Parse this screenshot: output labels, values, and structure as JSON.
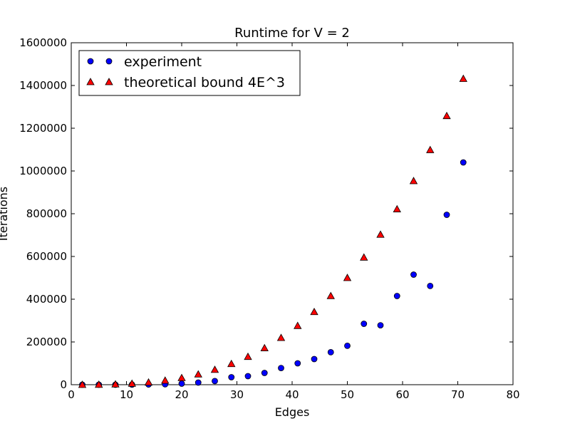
{
  "chart_data": {
    "type": "scatter",
    "title": "Runtime for V = 2",
    "xlabel": "Edges",
    "ylabel": "Iterations",
    "xlim": [
      0,
      80
    ],
    "ylim": [
      0,
      1600000
    ],
    "xticks": [
      0,
      10,
      20,
      30,
      40,
      50,
      60,
      70,
      80
    ],
    "yticks": [
      0,
      200000,
      400000,
      600000,
      800000,
      1000000,
      1200000,
      1400000,
      1600000
    ],
    "grid": false,
    "legend_position": "top-left",
    "series": [
      {
        "name": "experiment",
        "marker": "circle",
        "color": "#0000ff",
        "x": [
          2,
          5,
          8,
          11,
          14,
          17,
          20,
          23,
          26,
          29,
          32,
          35,
          38,
          41,
          44,
          47,
          50,
          53,
          56,
          59,
          62,
          65,
          68,
          71
        ],
        "y": [
          0,
          0,
          0,
          500,
          1000,
          2000,
          5000,
          10000,
          17000,
          35000,
          40000,
          55000,
          78000,
          100000,
          120000,
          152000,
          182000,
          285000,
          278000,
          415000,
          515000,
          462000,
          795000,
          1040000
        ]
      },
      {
        "name": "theoretical bound 4E^3",
        "marker": "triangle",
        "color": "#ff0000",
        "x": [
          2,
          5,
          8,
          11,
          14,
          17,
          20,
          23,
          26,
          29,
          32,
          35,
          38,
          41,
          44,
          47,
          50,
          53,
          56,
          59,
          62,
          65,
          68,
          71
        ],
        "y": [
          32,
          500,
          2048,
          5324,
          10976,
          19652,
          32000,
          48668,
          70304,
          97556,
          131072,
          171500,
          219488,
          275684,
          340736,
          415292,
          500000,
          595508,
          702464,
          821516,
          953312,
          1098500,
          1257728,
          1431644
        ]
      }
    ]
  }
}
